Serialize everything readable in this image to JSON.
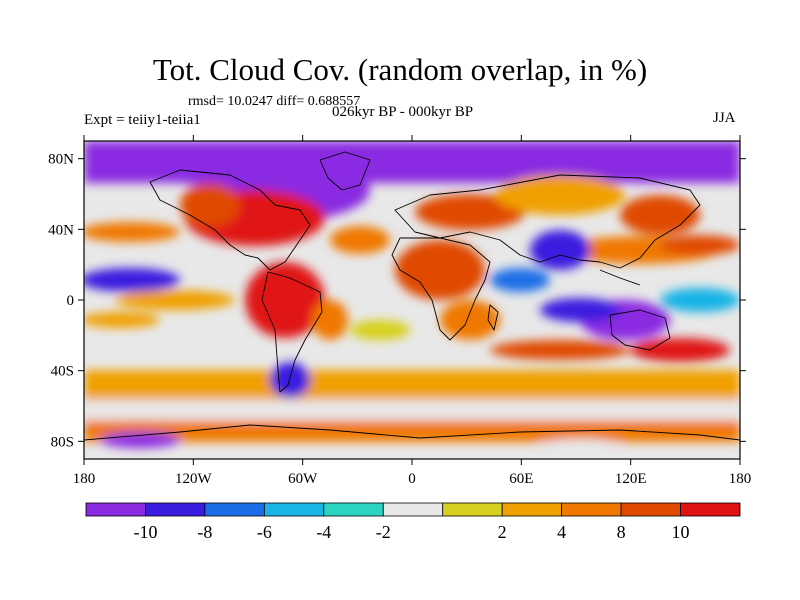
{
  "title": "Tot. Cloud Cov. (random overlap, in %)",
  "stats_line": "rmsd= 10.0247 diff= 0.688557",
  "period": "026kyr BP - 000kyr BP",
  "experiment": "Expt = teiiy1-teiia1",
  "season": "JJA",
  "map": {
    "projection": "cylindrical-equidistant",
    "lon_ticks": [
      {
        "lon": -180,
        "label": "180"
      },
      {
        "lon": -120,
        "label": "120W"
      },
      {
        "lon": -60,
        "label": "60W"
      },
      {
        "lon": 0,
        "label": "0"
      },
      {
        "lon": 60,
        "label": "60E"
      },
      {
        "lon": 120,
        "label": "120E"
      },
      {
        "lon": 180,
        "label": "180"
      }
    ],
    "lat_ticks": [
      {
        "lat": 80,
        "label": "80N"
      },
      {
        "lat": 40,
        "label": "40N"
      },
      {
        "lat": 0,
        "label": "0"
      },
      {
        "lat": -40,
        "label": "40S"
      },
      {
        "lat": -80,
        "label": "80S"
      }
    ],
    "colorbar": {
      "colors": [
        "#8a2be2",
        "#3a1ee0",
        "#1a6ee8",
        "#19b4e6",
        "#2bd4c0",
        "#e8e8e8",
        "#d7d01e",
        "#f0a000",
        "#f07800",
        "#e04a00",
        "#e01212"
      ],
      "labels": [
        "-10",
        "-8",
        "-6",
        "-4",
        "-2",
        "2",
        "4",
        "8",
        "10"
      ]
    }
  }
}
